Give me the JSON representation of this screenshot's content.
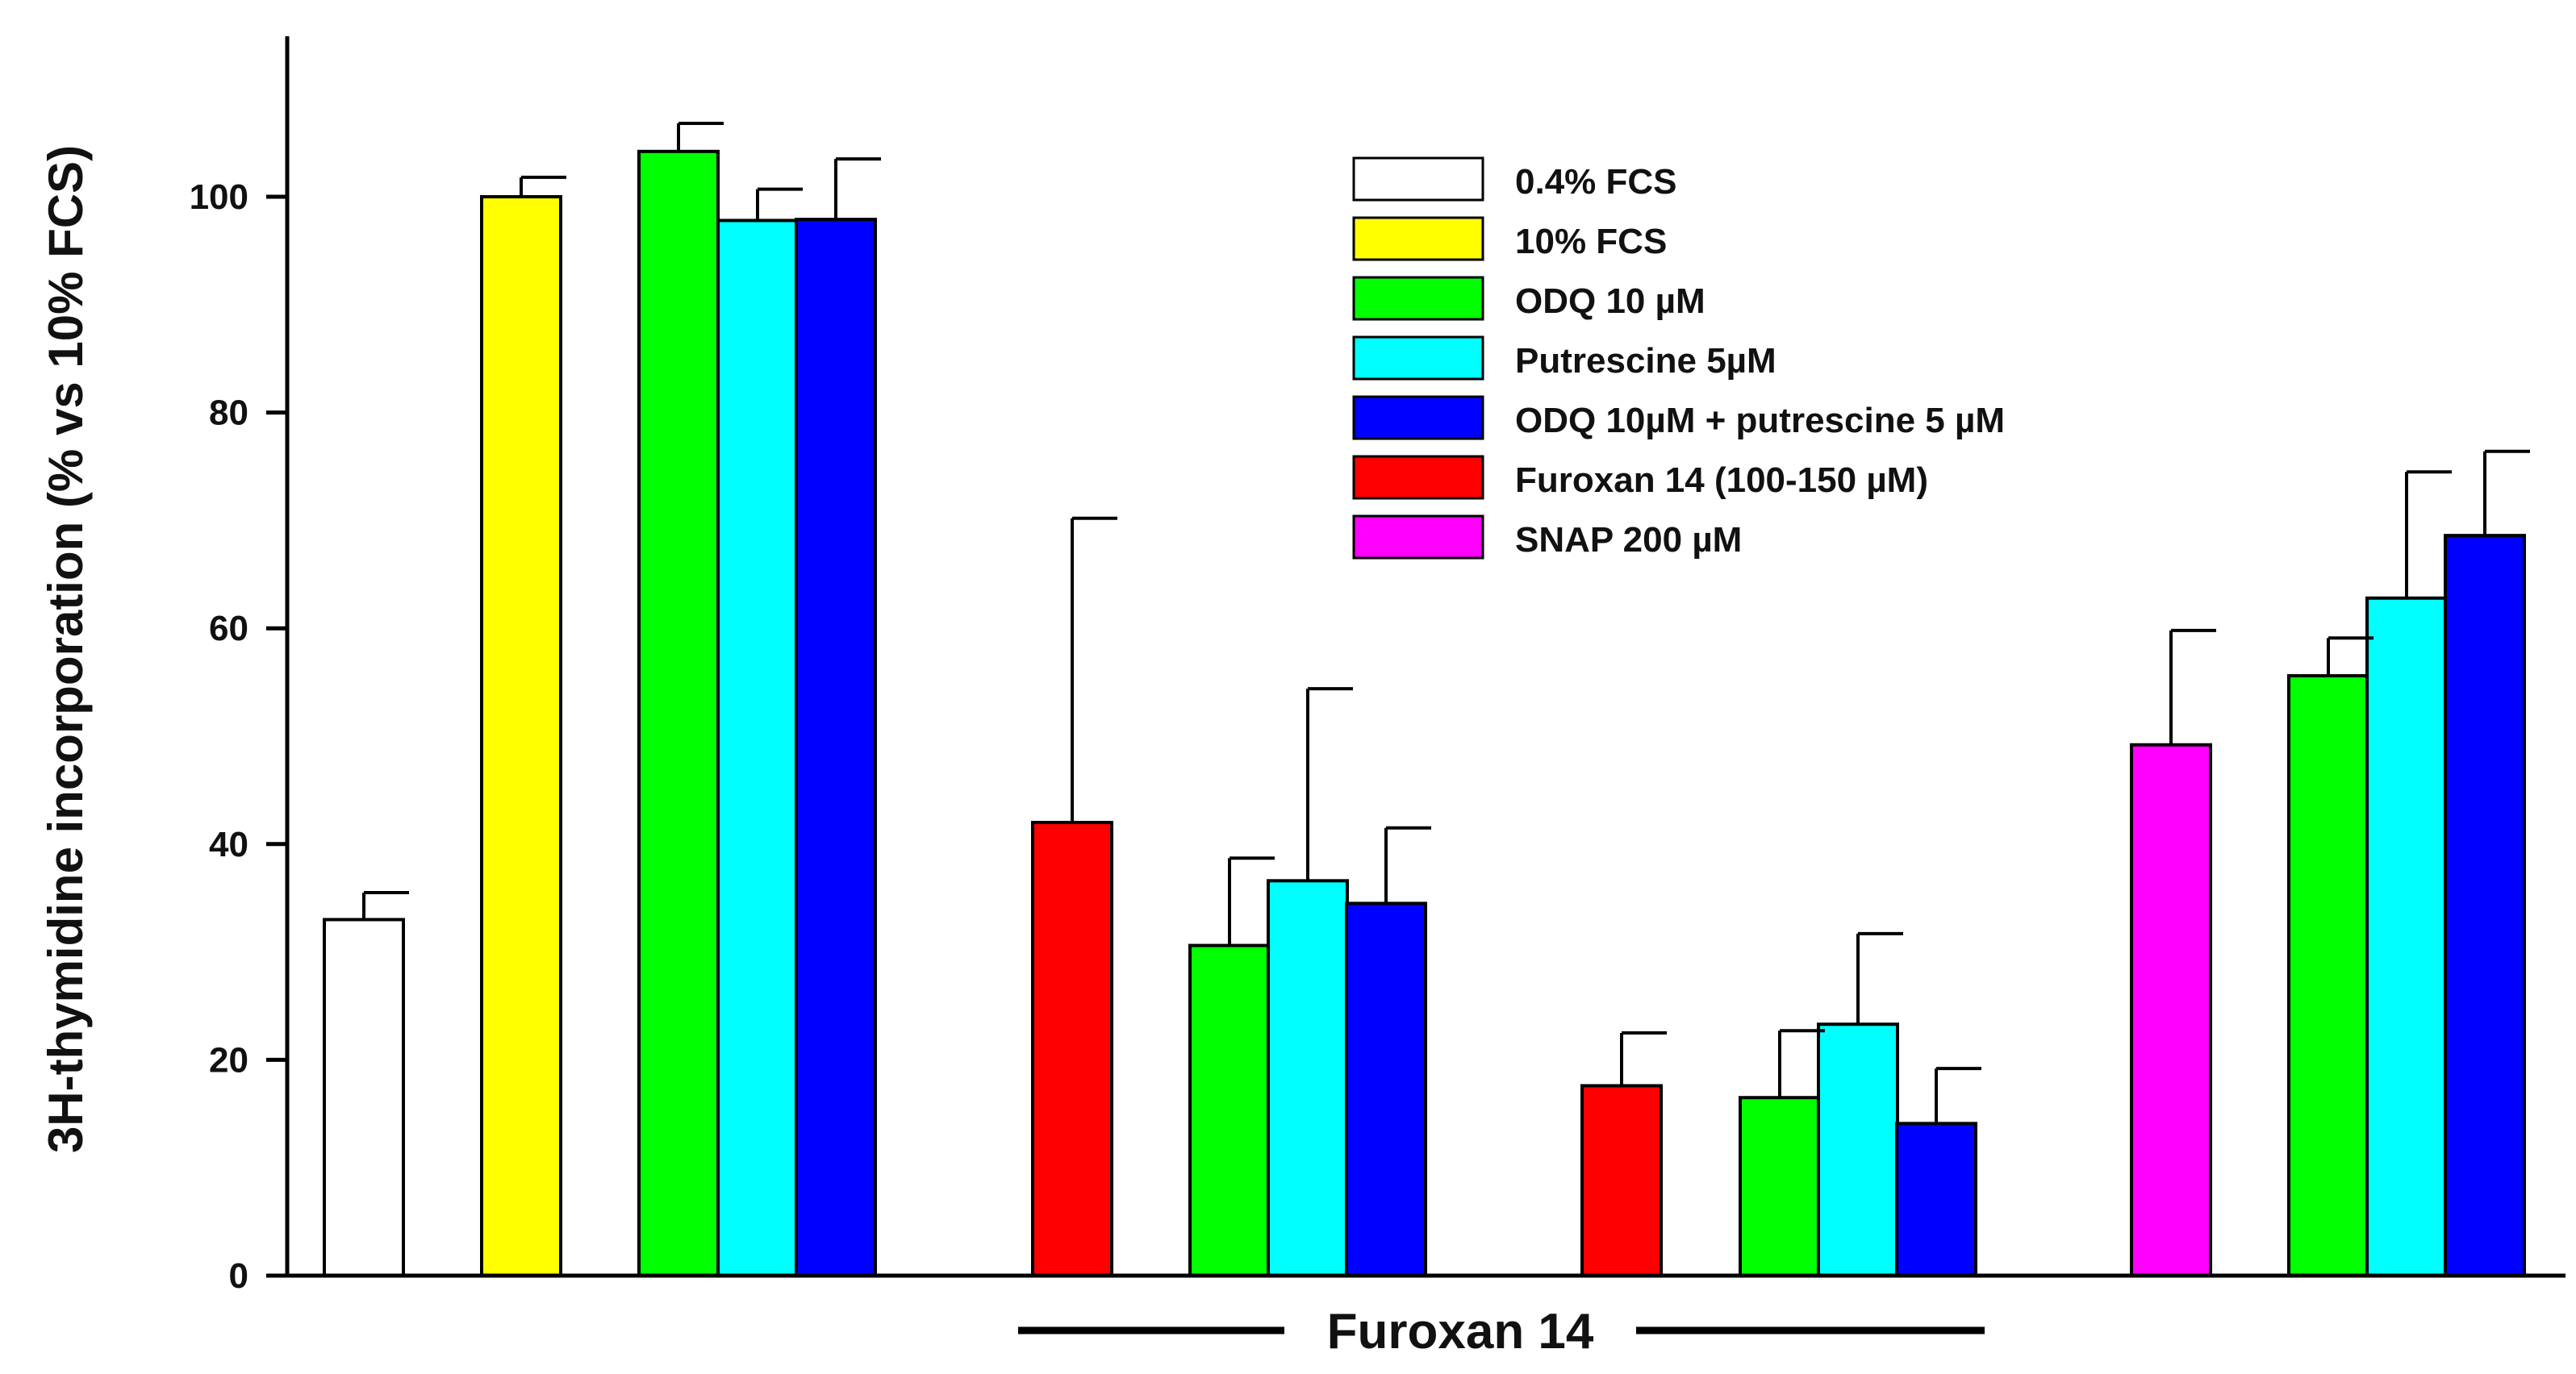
{
  "chart_data": {
    "type": "bar",
    "ylabel": "3H-thymidine incorporation (% vs 10% FCS)",
    "xlabel": "",
    "ylim": [
      0,
      115
    ],
    "yticks": [
      0,
      20,
      40,
      60,
      80,
      100
    ],
    "group_annotation": "Furoxan 14",
    "series": [
      {
        "name": "0.4% FCS",
        "color": "#ffffff"
      },
      {
        "name": "10% FCS",
        "color": "#ffff00"
      },
      {
        "name": "ODQ 10 µM",
        "color": "#00ff00"
      },
      {
        "name": "Putrescine 5µM",
        "color": "#00ffff"
      },
      {
        "name": "ODQ 10µM + putrescine 5 µM",
        "color": "#0000ff"
      },
      {
        "name": "Furoxan 14 (100-150 µM)",
        "color": "#ff0000"
      },
      {
        "name": "SNAP 200 µM",
        "color": "#ff00ff"
      }
    ],
    "bars": [
      {
        "series": "0.4% FCS",
        "value": 33,
        "error": 2.5
      },
      {
        "series": "10% FCS",
        "value": 100,
        "error": 1.8
      },
      {
        "series": "ODQ 10 µM",
        "value": 104.2,
        "error": 2.6
      },
      {
        "series": "Putrescine 5µM",
        "value": 97.8,
        "error": 2.9
      },
      {
        "series": "ODQ 10µM + putrescine 5 µM",
        "value": 97.9,
        "error": 5.6
      },
      {
        "series": "Furoxan 14 (100-150 µM)",
        "value": 42,
        "error": 28.2
      },
      {
        "series": "ODQ 10 µM",
        "value": 30.6,
        "error": 8.1
      },
      {
        "series": "Putrescine 5µM",
        "value": 36.6,
        "error": 17.8
      },
      {
        "series": "ODQ 10µM + putrescine 5 µM",
        "value": 34.5,
        "error": 7
      },
      {
        "series": "Furoxan 14 (100-150 µM)",
        "value": 17.6,
        "error": 4.9
      },
      {
        "series": "ODQ 10 µM",
        "value": 16.5,
        "error": 6.2
      },
      {
        "series": "Putrescine 5µM",
        "value": 23.3,
        "error": 8.4
      },
      {
        "series": "ODQ 10µM + putrescine 5 µM",
        "value": 14.1,
        "error": 5.1
      },
      {
        "series": "SNAP 200 µM",
        "value": 49.2,
        "error": 10.6
      },
      {
        "series": "ODQ 10 µM",
        "value": 55.6,
        "error": 3.5
      },
      {
        "series": "Putrescine 5µM",
        "value": 62.8,
        "error": 11.7
      },
      {
        "series": "ODQ 10µM + putrescine 5 µM",
        "value": 68.6,
        "error": 7.8
      }
    ]
  }
}
